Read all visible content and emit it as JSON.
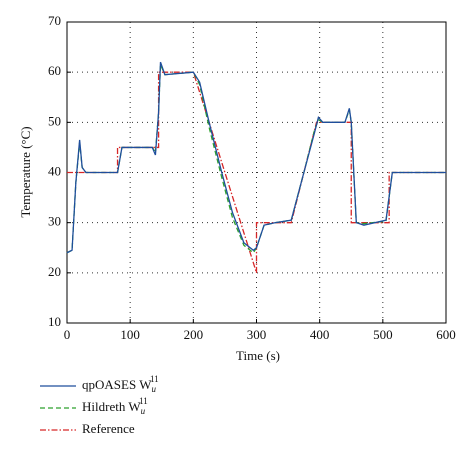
{
  "chart_data": {
    "type": "line",
    "xlabel": "Time (s)",
    "ylabel": "Temperature (°C)",
    "xlim": [
      0,
      600
    ],
    "xticks": [
      0,
      100,
      200,
      300,
      400,
      500,
      600
    ],
    "ylim": [
      10,
      70
    ],
    "yticks": [
      10,
      20,
      30,
      40,
      50,
      60,
      70
    ],
    "grid": true,
    "series": [
      {
        "name": "qpOASES W_u^11",
        "color": "#1f4e9c",
        "dash": "",
        "x": [
          0,
          8,
          14,
          20,
          24,
          30,
          80,
          87,
          135,
          140,
          145,
          148,
          155,
          200,
          210,
          225,
          245,
          262,
          280,
          295,
          300,
          312,
          330,
          355,
          375,
          392,
          398,
          405,
          440,
          447,
          450,
          458,
          470,
          505,
          515,
          600
        ],
        "values": [
          24,
          24.5,
          38,
          46.5,
          41,
          40,
          40,
          45,
          45,
          43.5,
          52,
          62,
          59.5,
          60,
          58,
          50,
          40,
          32,
          26,
          24.5,
          25,
          29.5,
          30,
          30.5,
          40,
          48,
          51,
          50,
          50,
          52.8,
          50,
          30,
          29.5,
          30.5,
          40,
          40
        ]
      },
      {
        "name": "Hildreth W_u^11",
        "color": "#2ca02c",
        "dash": "5,3",
        "x": [
          0,
          8,
          14,
          20,
          24,
          30,
          80,
          87,
          135,
          140,
          145,
          148,
          155,
          200,
          210,
          225,
          245,
          262,
          280,
          295,
          300,
          312,
          330,
          355,
          375,
          392,
          398,
          405,
          440,
          447,
          450,
          458,
          470,
          505,
          515,
          600
        ],
        "values": [
          24,
          24.5,
          38,
          46,
          41,
          40,
          40,
          45,
          45,
          44,
          52,
          61.5,
          59.5,
          60,
          57.5,
          49,
          39,
          31,
          25.5,
          24,
          25,
          29.5,
          30,
          30.5,
          40,
          48.5,
          50.5,
          50,
          50,
          52.5,
          50,
          30,
          29.8,
          30.3,
          40,
          40
        ]
      },
      {
        "name": "Reference",
        "color": "#d62728",
        "dash": "6,2,1.5,2",
        "x": [
          0,
          80,
          80,
          145,
          145,
          200,
          300,
          300,
          355,
          395,
          450,
          450,
          510,
          510,
          600
        ],
        "values": [
          40,
          40,
          45,
          45,
          60,
          60,
          20,
          30,
          30,
          50,
          50,
          30,
          30,
          40,
          40
        ]
      }
    ]
  }
}
